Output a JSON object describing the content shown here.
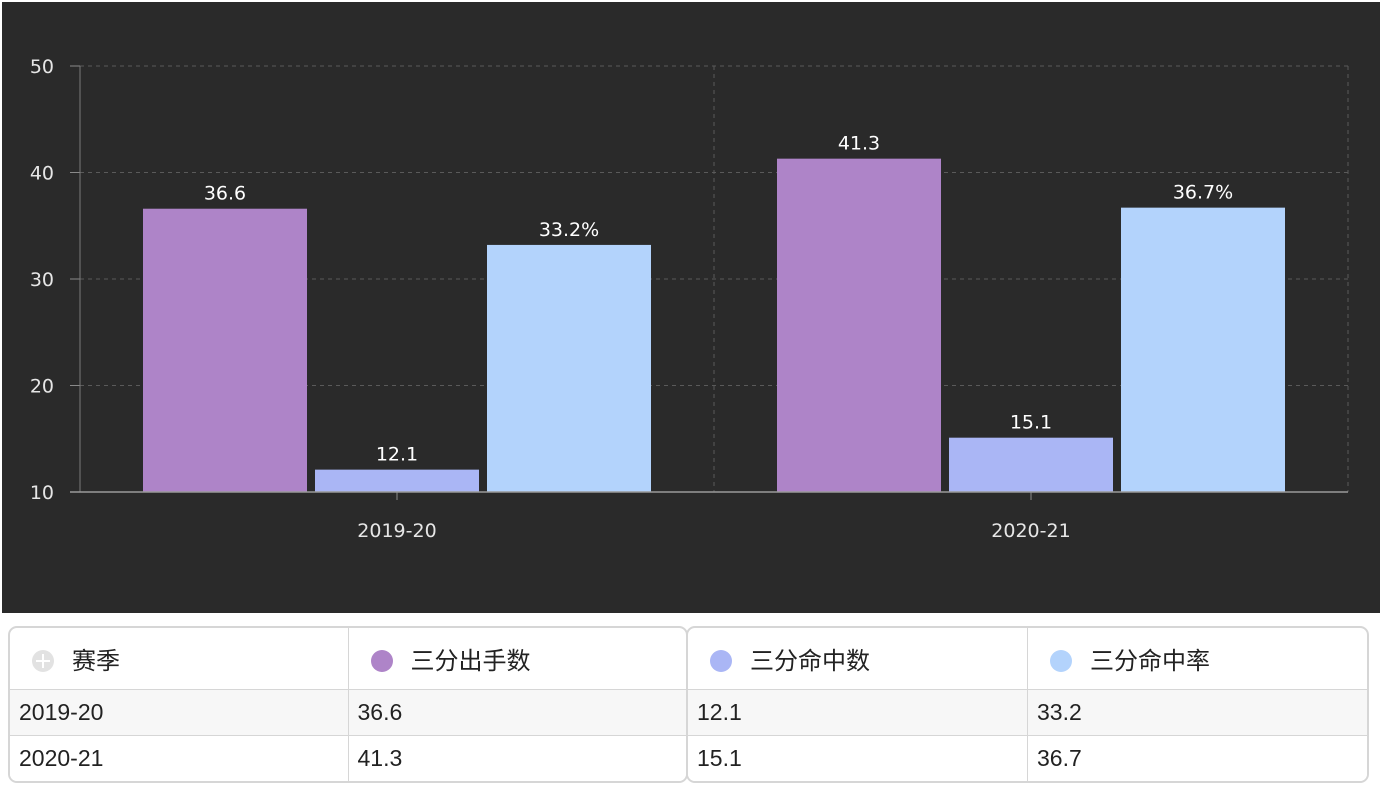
{
  "chart_data": {
    "type": "bar",
    "categories": [
      "2019-20",
      "2020-21"
    ],
    "series": [
      {
        "name": "三分出手数",
        "color": "#ae84c8",
        "values": [
          36.6,
          41.3
        ],
        "labels": [
          "36.6",
          "41.3"
        ]
      },
      {
        "name": "三分命中数",
        "color": "#aab6f5",
        "values": [
          12.1,
          15.1
        ],
        "labels": [
          "12.1",
          "15.1"
        ]
      },
      {
        "name": "三分命中率",
        "color": "#b3d3fc",
        "values": [
          33.2,
          36.7
        ],
        "labels": [
          "33.2%",
          "36.7%"
        ]
      }
    ],
    "ylim": [
      10,
      50
    ],
    "yticks": [
      "10",
      "20",
      "30",
      "40",
      "50"
    ],
    "grid": true,
    "background": "#2a2a2a",
    "legend": "table below chart"
  },
  "table": {
    "header_first": "赛季",
    "headers": [
      "三分出手数",
      "三分命中数",
      "三分命中率"
    ],
    "header_colors": [
      "#ae84c8",
      "#aab6f5",
      "#b3d3fc"
    ],
    "rows": [
      {
        "season": "2019-20",
        "cells": [
          "36.6",
          "12.1",
          "33.2"
        ]
      },
      {
        "season": "2020-21",
        "cells": [
          "41.3",
          "15.1",
          "36.7"
        ]
      }
    ]
  }
}
